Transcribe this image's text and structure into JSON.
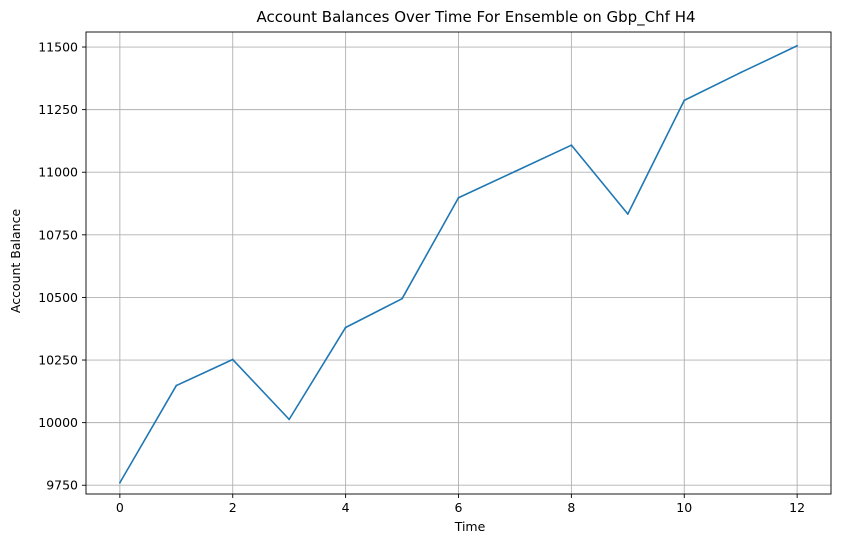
{
  "chart_data": {
    "type": "line",
    "title": "Account Balances Over Time For Ensemble on Gbp_Chf H4",
    "xlabel": "Time",
    "ylabel": "Account Balance",
    "xlim": [
      -0.6,
      12.6
    ],
    "ylim": [
      9715,
      11560
    ],
    "xticks": [
      0,
      2,
      4,
      6,
      8,
      10,
      12
    ],
    "yticks": [
      9750,
      10000,
      10250,
      10500,
      10750,
      11000,
      11250,
      11500
    ],
    "grid": true,
    "series": [
      {
        "color": "#1f77b4",
        "x": [
          0,
          1,
          2,
          3,
          4,
          5,
          6,
          7,
          8,
          9,
          10,
          11,
          12
        ],
        "y": [
          9760,
          10148,
          10252,
          10013,
          10380,
          10495,
          10898,
          11003,
          11108,
          10833,
          11287,
          11398,
          11505
        ]
      }
    ]
  }
}
